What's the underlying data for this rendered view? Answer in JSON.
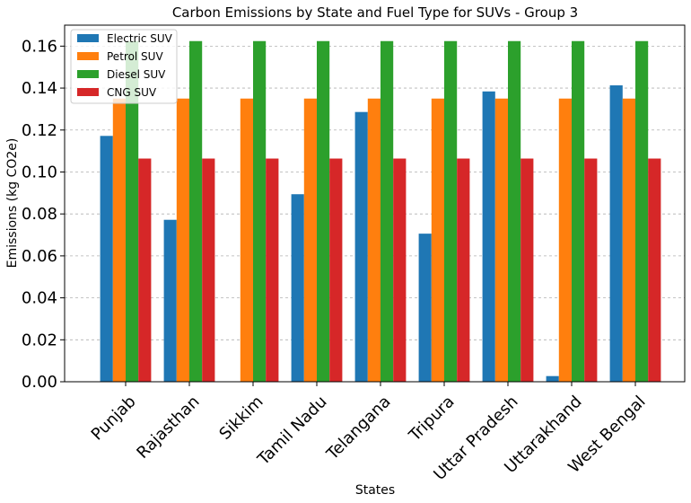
{
  "chart_data": {
    "type": "bar",
    "title": "Carbon Emissions by State and Fuel Type for SUVs - Group 3",
    "xlabel": "States",
    "ylabel": "Emissions (kg CO2e)",
    "ylim": [
      0,
      0.17
    ],
    "yticks": [
      "0.00",
      "0.02",
      "0.04",
      "0.06",
      "0.08",
      "0.10",
      "0.12",
      "0.14",
      "0.16"
    ],
    "grid": "y-dashed",
    "legend_position": "top-left",
    "categories": [
      "Punjab",
      "Rajasthan",
      "Sikkim",
      "Tamil Nadu",
      "Telangana",
      "Tripura",
      "Uttar Pradesh",
      "Uttarakhand",
      "West Bengal"
    ],
    "series": [
      {
        "name": "Electric SUV",
        "color": "#1f77b4",
        "values": [
          0.1172,
          0.0772,
          0.0,
          0.0894,
          0.1286,
          0.0706,
          0.1384,
          0.0027,
          0.1413
        ]
      },
      {
        "name": "Petrol SUV",
        "color": "#ff7f0e",
        "values": [
          0.135,
          0.135,
          0.135,
          0.135,
          0.135,
          0.135,
          0.135,
          0.135,
          0.135
        ]
      },
      {
        "name": "Diesel SUV",
        "color": "#2ca02c",
        "values": [
          0.1624,
          0.1624,
          0.1624,
          0.1624,
          0.1624,
          0.1624,
          0.1624,
          0.1624,
          0.1624
        ]
      },
      {
        "name": "CNG SUV",
        "color": "#d62728",
        "values": [
          0.1064,
          0.1064,
          0.1064,
          0.1064,
          0.1064,
          0.1064,
          0.1064,
          0.1064,
          0.1064
        ]
      }
    ]
  }
}
